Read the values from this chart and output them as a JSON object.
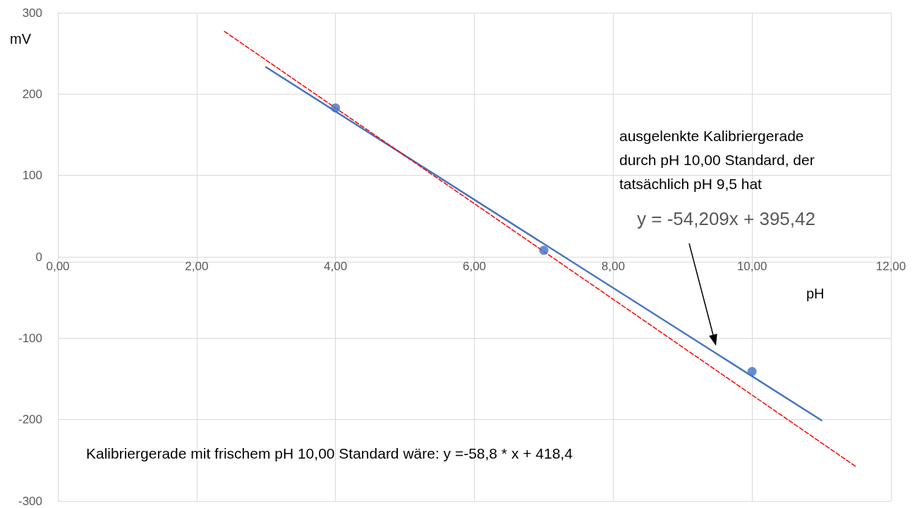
{
  "chart_data": {
    "type": "scatter",
    "xlabel": "pH",
    "ylabel": "mV",
    "xlim": [
      0,
      12
    ],
    "xticks": [
      {
        "value": 0,
        "label": "0,00"
      },
      {
        "value": 2,
        "label": "2,00"
      },
      {
        "value": 4,
        "label": "4,00"
      },
      {
        "value": 6,
        "label": "6,00"
      },
      {
        "value": 8,
        "label": "8,00"
      },
      {
        "value": 10,
        "label": "10,00"
      },
      {
        "value": 12,
        "label": "12,00"
      }
    ],
    "ylim": [
      -300,
      300
    ],
    "yticks": [
      -300,
      -200,
      -100,
      0,
      100,
      200,
      300
    ],
    "grid": true,
    "series": [
      {
        "color": "#4472c4",
        "marker": "circle",
        "x": [
          4,
          7,
          10
        ],
        "values": [
          183,
          8,
          -141
        ]
      },
      {
        "type": "line",
        "color": "#4472c4",
        "marker": "none",
        "line_style": "solid",
        "x": [
          3,
          11
        ],
        "values": [
          233,
          -201
        ]
      },
      {
        "type": "line",
        "color": "#ff0000",
        "marker": "none",
        "line_style": "dashed",
        "x": [
          2.4,
          11.5
        ],
        "values": [
          277,
          -258
        ]
      }
    ],
    "annotations": [
      "ausgelenkte Kalibriergerade\ndurch pH 10,00 Standard, der\ntatsächlich pH 9,5 hat",
      "y = -54,209x + 395,42",
      "Kalibriergerade mit frischem pH 10,00 Standard wäre: y =-58,8 * x + 418,4"
    ]
  }
}
